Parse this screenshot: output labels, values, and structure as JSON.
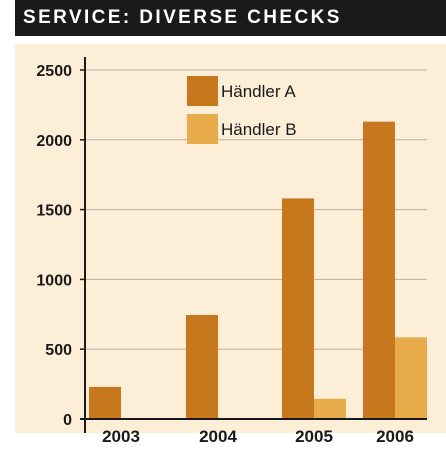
{
  "header": {
    "title": "SERVICE: DIVERSE CHECKS"
  },
  "colors": {
    "header_bg": "#1a1a1a",
    "panel_bg": "#fdeed8",
    "series_a": "#c8781c",
    "series_b": "#e8ad4a",
    "grid": "#b8b0a4"
  },
  "chart_data": {
    "type": "bar",
    "title": "SERVICE: DIVERSE CHECKS",
    "categories": [
      "2003",
      "2004",
      "2005",
      "2006"
    ],
    "series": [
      {
        "name": "Händler A",
        "values": [
          230,
          745,
          1580,
          2130
        ]
      },
      {
        "name": "Händler B",
        "values": [
          0,
          0,
          145,
          585
        ]
      }
    ],
    "ylim": [
      0,
      2500
    ],
    "yticks": [
      0,
      500,
      1000,
      1500,
      2000,
      2500
    ],
    "grid": true,
    "legend": "top-center"
  }
}
